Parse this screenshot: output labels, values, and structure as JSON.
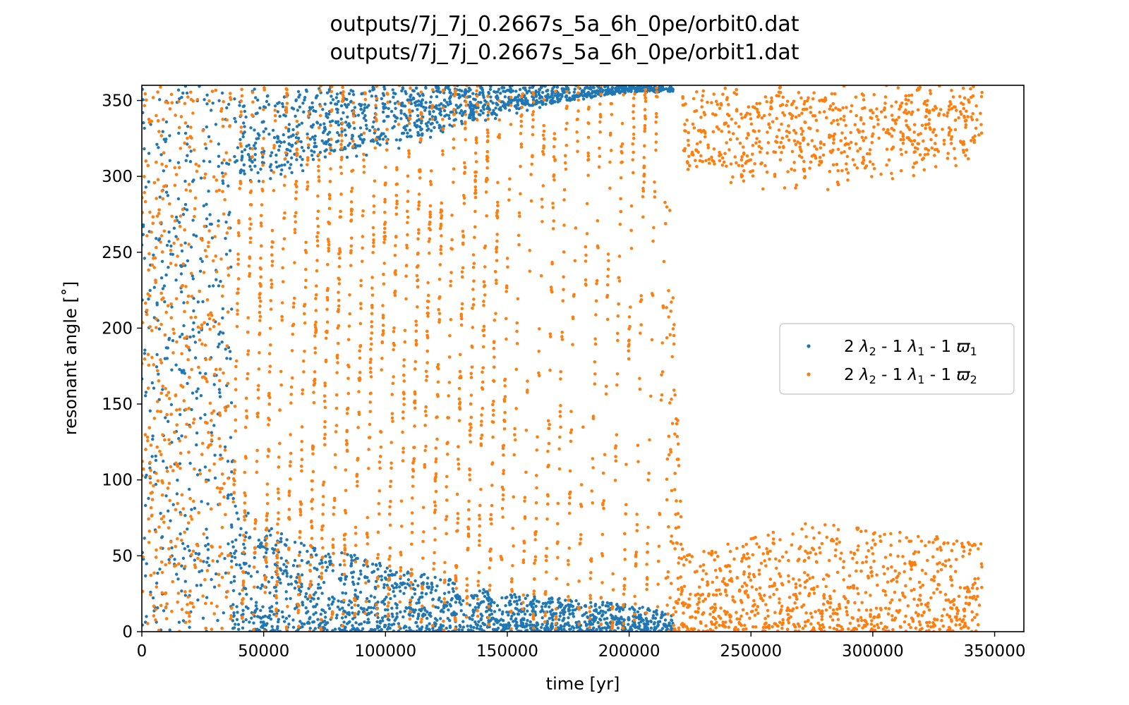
{
  "chart_data": {
    "type": "scatter",
    "title_lines": [
      "outputs/7j_7j_0.2667s_5a_6h_0pe/orbit0.dat",
      "outputs/7j_7j_0.2667s_5a_6h_0pe/orbit1.dat"
    ],
    "xlabel": "time [yr]",
    "ylabel": "resonant angle [˚]",
    "xlim": [
      0,
      362000
    ],
    "ylim": [
      0,
      360
    ],
    "x_ticks": [
      0,
      50000,
      100000,
      150000,
      200000,
      250000,
      300000,
      350000
    ],
    "x_tick_labels": [
      "0",
      "50000",
      "100000",
      "150000",
      "200000",
      "250000",
      "300000",
      "350000"
    ],
    "y_ticks": [
      0,
      50,
      100,
      150,
      200,
      250,
      300,
      350
    ],
    "y_tick_labels": [
      "0",
      "50",
      "100",
      "150",
      "200",
      "250",
      "300",
      "350"
    ],
    "grid": false,
    "legend_position": "center-right",
    "time_span": [
      0,
      345000
    ],
    "series": [
      {
        "name": "2 λ₂ - 1 λ₁ - 1 ϖ₁",
        "legend_parts": {
          "a": "2 ",
          "lam2": "λ",
          "sub2": "2",
          "b": " - 1 ",
          "lam1": "λ",
          "sub1": "1",
          "c": " - 1 ",
          "pi": "ϖ",
          "subp": "1"
        },
        "color": "#1f77b4",
        "envelope": [
          {
            "t": 0,
            "low": 0,
            "high": 360,
            "chaotic": true
          },
          {
            "t": 36000,
            "low": 0,
            "high": 360,
            "chaotic": true
          },
          {
            "t": 38000,
            "low": 0,
            "high": 85
          },
          {
            "t": 60000,
            "low": 0,
            "high": 62
          },
          {
            "t": 100000,
            "low": 0,
            "high": 45
          },
          {
            "t": 150000,
            "low": 0,
            "high": 25
          },
          {
            "t": 200000,
            "low": 0,
            "high": 18
          },
          {
            "t": 218000,
            "low": 0,
            "high": 12
          }
        ],
        "envelope_upper_wrap": [
          {
            "t": 38000,
            "low": 285,
            "high": 360
          },
          {
            "t": 100000,
            "low": 315,
            "high": 360
          },
          {
            "t": 150000,
            "low": 340,
            "high": 360
          },
          {
            "t": 200000,
            "low": 355,
            "high": 360
          }
        ]
      },
      {
        "name": "2 λ₂ - 1 λ₁ - 1 ϖ₂",
        "legend_parts": {
          "a": "2 ",
          "lam2": "λ",
          "sub2": "2",
          "b": " - 1 ",
          "lam1": "λ",
          "sub1": "1",
          "c": " - 1 ",
          "pi": "ϖ",
          "subp": "2"
        },
        "color": "#ff7f0e",
        "envelope": [
          {
            "t": 0,
            "low": 0,
            "high": 360,
            "chaotic": true
          },
          {
            "t": 36000,
            "low": 0,
            "high": 360,
            "chaotic": true
          },
          {
            "t": 40000,
            "low": 0,
            "high": 360
          },
          {
            "t": 215000,
            "low": 0,
            "high": 360
          },
          {
            "t": 222000,
            "low": 0,
            "high": 50
          },
          {
            "t": 270000,
            "low": 0,
            "high": 72
          },
          {
            "t": 310000,
            "low": 0,
            "high": 68
          },
          {
            "t": 345000,
            "low": 0,
            "high": 58
          }
        ],
        "envelope_upper_wrap": [
          {
            "t": 222000,
            "low": 300,
            "high": 360
          },
          {
            "t": 250000,
            "low": 288,
            "high": 360
          },
          {
            "t": 300000,
            "low": 292,
            "high": 360
          },
          {
            "t": 345000,
            "low": 310,
            "high": 360
          }
        ],
        "libration_period_yr": 4600
      }
    ]
  }
}
